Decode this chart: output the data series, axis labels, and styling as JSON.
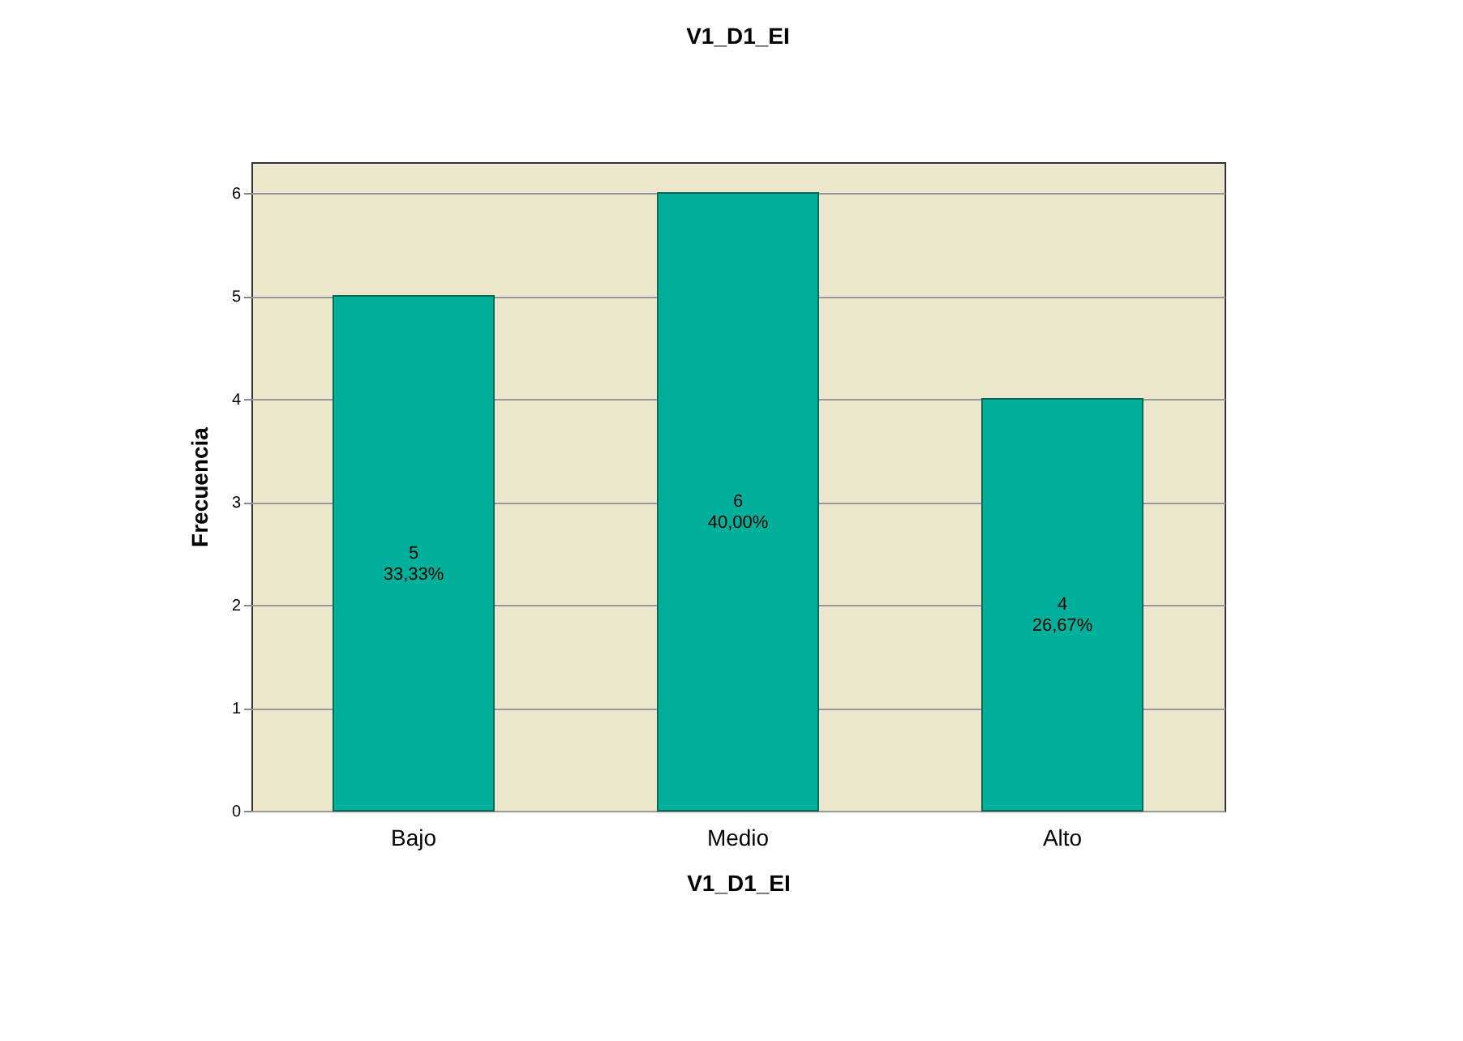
{
  "chart_data": {
    "type": "bar",
    "title": "V1_D1_EI",
    "xlabel": "V1_D1_EI",
    "ylabel": "Frecuencia",
    "categories": [
      "Bajo",
      "Medio",
      "Alto"
    ],
    "values": [
      5,
      6,
      4
    ],
    "color": "#00b09a",
    "value_labels": [
      "5\n33,33%",
      "6\n40,00%",
      "4\n26,67%"
    ],
    "ylim": [
      0,
      6.3
    ],
    "yticks": [
      0,
      1,
      2,
      3,
      4,
      5,
      6
    ],
    "grid": "y"
  }
}
